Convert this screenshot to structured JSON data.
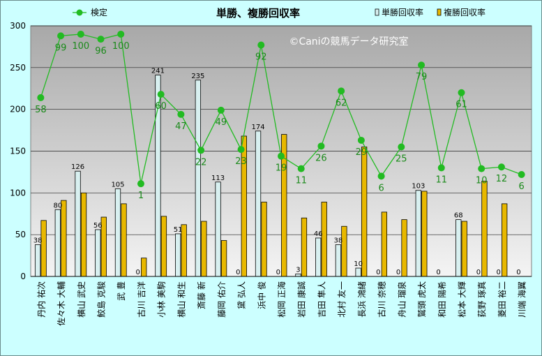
{
  "chart_data": {
    "type": "bar",
    "title": "単勝、複勝回収率",
    "watermark": "©Caniの競馬データ研究室",
    "ylim": [
      0,
      300
    ],
    "yticks": [
      0,
      50,
      100,
      150,
      200,
      250,
      300
    ],
    "grid": true,
    "legend": [
      "検定",
      "単勝回収率",
      "複勝回収率"
    ],
    "categories": [
      "丹内 祐次",
      "佐々木 大輔",
      "横山 武史",
      "鮫島 克駿",
      "武 豊",
      "古川 吉洋",
      "小林 美駒",
      "横山 和生",
      "斎藤 新",
      "藤岡 佑介",
      "黛 弘人",
      "浜中 俊",
      "松岡 正海",
      "岩田 康誠",
      "吉田 隼人",
      "北村 友一",
      "長浜 鴻緒",
      "古川 奈穂",
      "舟山 瑠泉",
      "鷲頭 虎太",
      "和田 陽希",
      "松本 大輝",
      "荻野 琢真",
      "菱田 裕二",
      "川端 海翼"
    ],
    "series": [
      {
        "name": "単勝回収率",
        "color": "#d8f0f0",
        "values": [
          38,
          80,
          126,
          56,
          105,
          0,
          241,
          51,
          235,
          113,
          0,
          174,
          0,
          3,
          46,
          38,
          10,
          0,
          0,
          103,
          0,
          68,
          0,
          0,
          0
        ]
      },
      {
        "name": "複勝回収率",
        "color": "#e8b800",
        "values": [
          67,
          91,
          100,
          71,
          87,
          22,
          72,
          62,
          66,
          43,
          168,
          89,
          170,
          70,
          89,
          60,
          155,
          77,
          68,
          102,
          0,
          66,
          114,
          87,
          0
        ]
      },
      {
        "name": "検定",
        "color": "#22bb22",
        "values": [
          214,
          288,
          290,
          284,
          290,
          111,
          218,
          194,
          151,
          199,
          152,
          277,
          144,
          129,
          156,
          222,
          163,
          120,
          155,
          253,
          130,
          220,
          129,
          131,
          122
        ],
        "labels": [
          58,
          99,
          100,
          96,
          100,
          1,
          60,
          47,
          22,
          49,
          23,
          92,
          19,
          11,
          26,
          62,
          29,
          6,
          25,
          79,
          11,
          61,
          10,
          12,
          6
        ]
      }
    ]
  }
}
